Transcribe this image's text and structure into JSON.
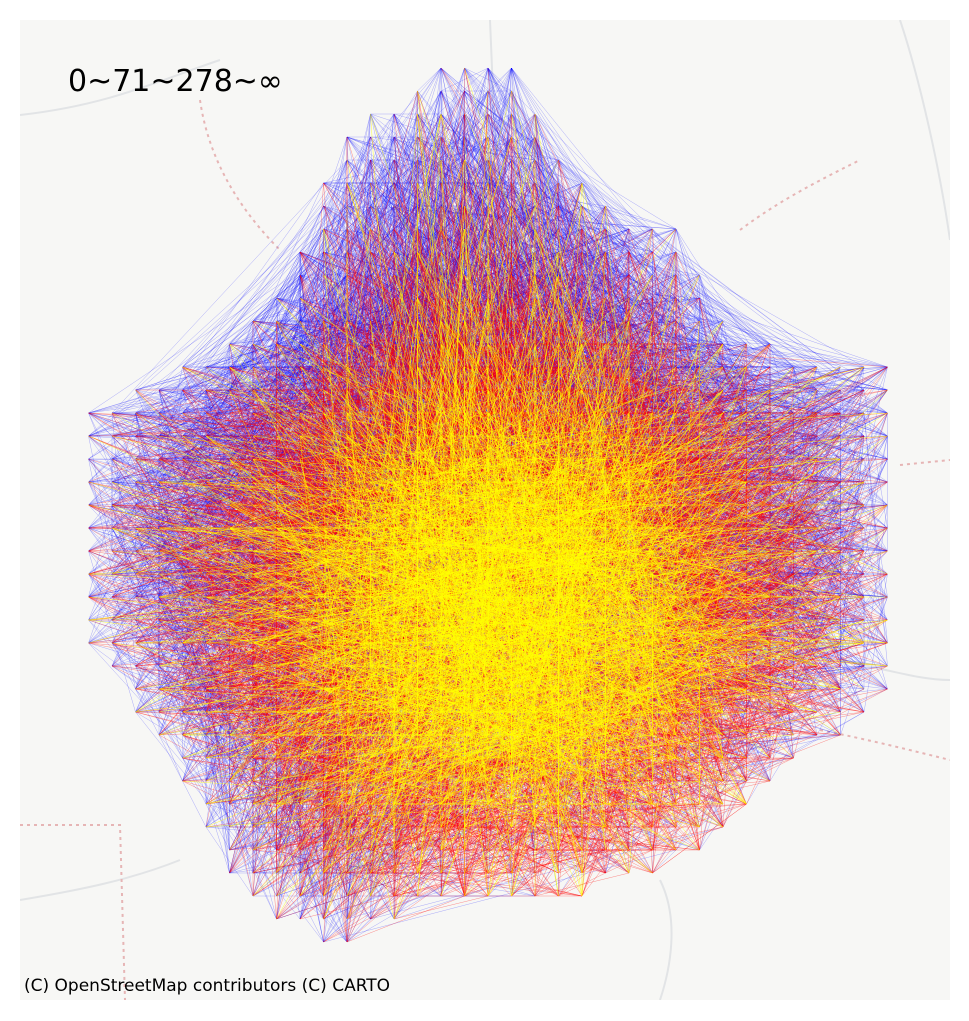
{
  "map": {
    "title": "0~71~278~∞",
    "attribution": "(C) OpenStreetMap contributors (C) CARTO",
    "basemap_style": "light-gray",
    "colors": {
      "background": "#f7f7f5",
      "low": "#0000ff",
      "mid": "#ff0000",
      "high": "#ffff00",
      "road": "#e2e4e6",
      "rail": "#e6b5b5"
    },
    "classes": [
      {
        "range": "0~71",
        "color": "#0000ff"
      },
      {
        "range": "71~278",
        "color": "#ff0000"
      },
      {
        "range": "278~∞",
        "color": "#ffff00"
      }
    ],
    "layer": "origin-destination flow lines on a grid of zone centroids"
  }
}
